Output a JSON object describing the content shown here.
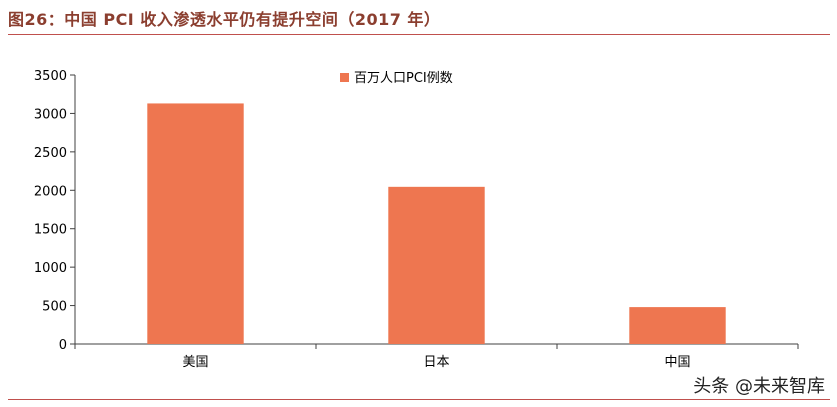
{
  "title": "图26：中国 PCI 收入渗透水平仍有提升空间（2017 年）",
  "watermark": "头条 @未来智库",
  "colors": {
    "bar": "#EE7650",
    "accent": "#C0504D",
    "axis": "#404040",
    "title": "#8B3E2F"
  },
  "chart_data": {
    "type": "bar",
    "categories": [
      "美国",
      "日本",
      "中国"
    ],
    "series": [
      {
        "name": "百万人口PCI例数",
        "values": [
          3130,
          2045,
          480
        ]
      }
    ],
    "title": "",
    "xlabel": "",
    "ylabel": "",
    "ylim": [
      0,
      3500
    ],
    "yticks": [
      0,
      500,
      1000,
      1500,
      2000,
      2500,
      3000,
      3500
    ],
    "grid": false,
    "legend": "top-center"
  }
}
